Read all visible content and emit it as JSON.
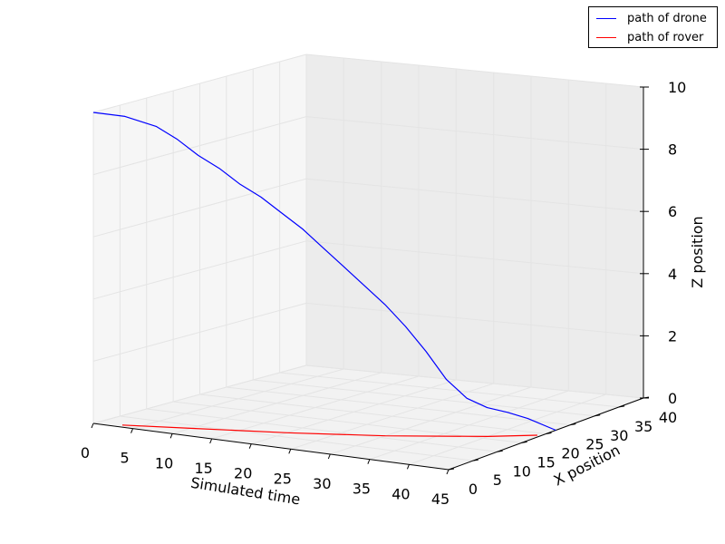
{
  "chart_data": {
    "type": "line",
    "projection": "3d",
    "xlabel": "Simulated time",
    "ylabel": "X position",
    "zlabel": "Z position",
    "xlim": [
      0,
      45
    ],
    "ylim": [
      0,
      40
    ],
    "zlim": [
      0,
      10
    ],
    "x_ticks": [
      "0",
      "5",
      "10",
      "15",
      "20",
      "25",
      "30",
      "35",
      "40",
      "45"
    ],
    "y_ticks": [
      "0",
      "5",
      "10",
      "15",
      "20",
      "25",
      "30",
      "35",
      "40"
    ],
    "z_ticks": [
      "0",
      "2",
      "4",
      "6",
      "8",
      "10"
    ],
    "grid": true,
    "legend_position": "top-right",
    "series": [
      {
        "name": "path of drone",
        "color": "#0000ff",
        "points": [
          [
            0,
            0,
            10
          ],
          [
            3,
            1.5,
            9.9
          ],
          [
            6,
            3,
            9.6
          ],
          [
            8,
            4,
            9.2
          ],
          [
            10,
            5,
            8.7
          ],
          [
            12,
            6,
            8.3
          ],
          [
            14,
            7,
            7.8
          ],
          [
            16,
            8,
            7.4
          ],
          [
            18,
            9,
            6.9
          ],
          [
            20,
            10,
            6.4
          ],
          [
            22,
            11,
            5.8
          ],
          [
            24,
            12,
            5.2
          ],
          [
            26,
            13,
            4.6
          ],
          [
            28,
            14,
            4.0
          ],
          [
            30,
            15,
            3.3
          ],
          [
            32,
            16,
            2.5
          ],
          [
            34,
            17,
            1.6
          ],
          [
            36,
            18,
            1.0
          ],
          [
            38,
            19,
            0.7
          ],
          [
            40,
            20,
            0.55
          ],
          [
            42,
            21,
            0.35
          ],
          [
            45,
            22,
            0.0
          ]
        ]
      },
      {
        "name": "path of rover",
        "color": "#ff0000",
        "points": [
          [
            3,
            1,
            0
          ],
          [
            10,
            3.5,
            0
          ],
          [
            20,
            7,
            0
          ],
          [
            30,
            11,
            0
          ],
          [
            40,
            16,
            0
          ],
          [
            44.5,
            19,
            0
          ]
        ]
      }
    ]
  }
}
